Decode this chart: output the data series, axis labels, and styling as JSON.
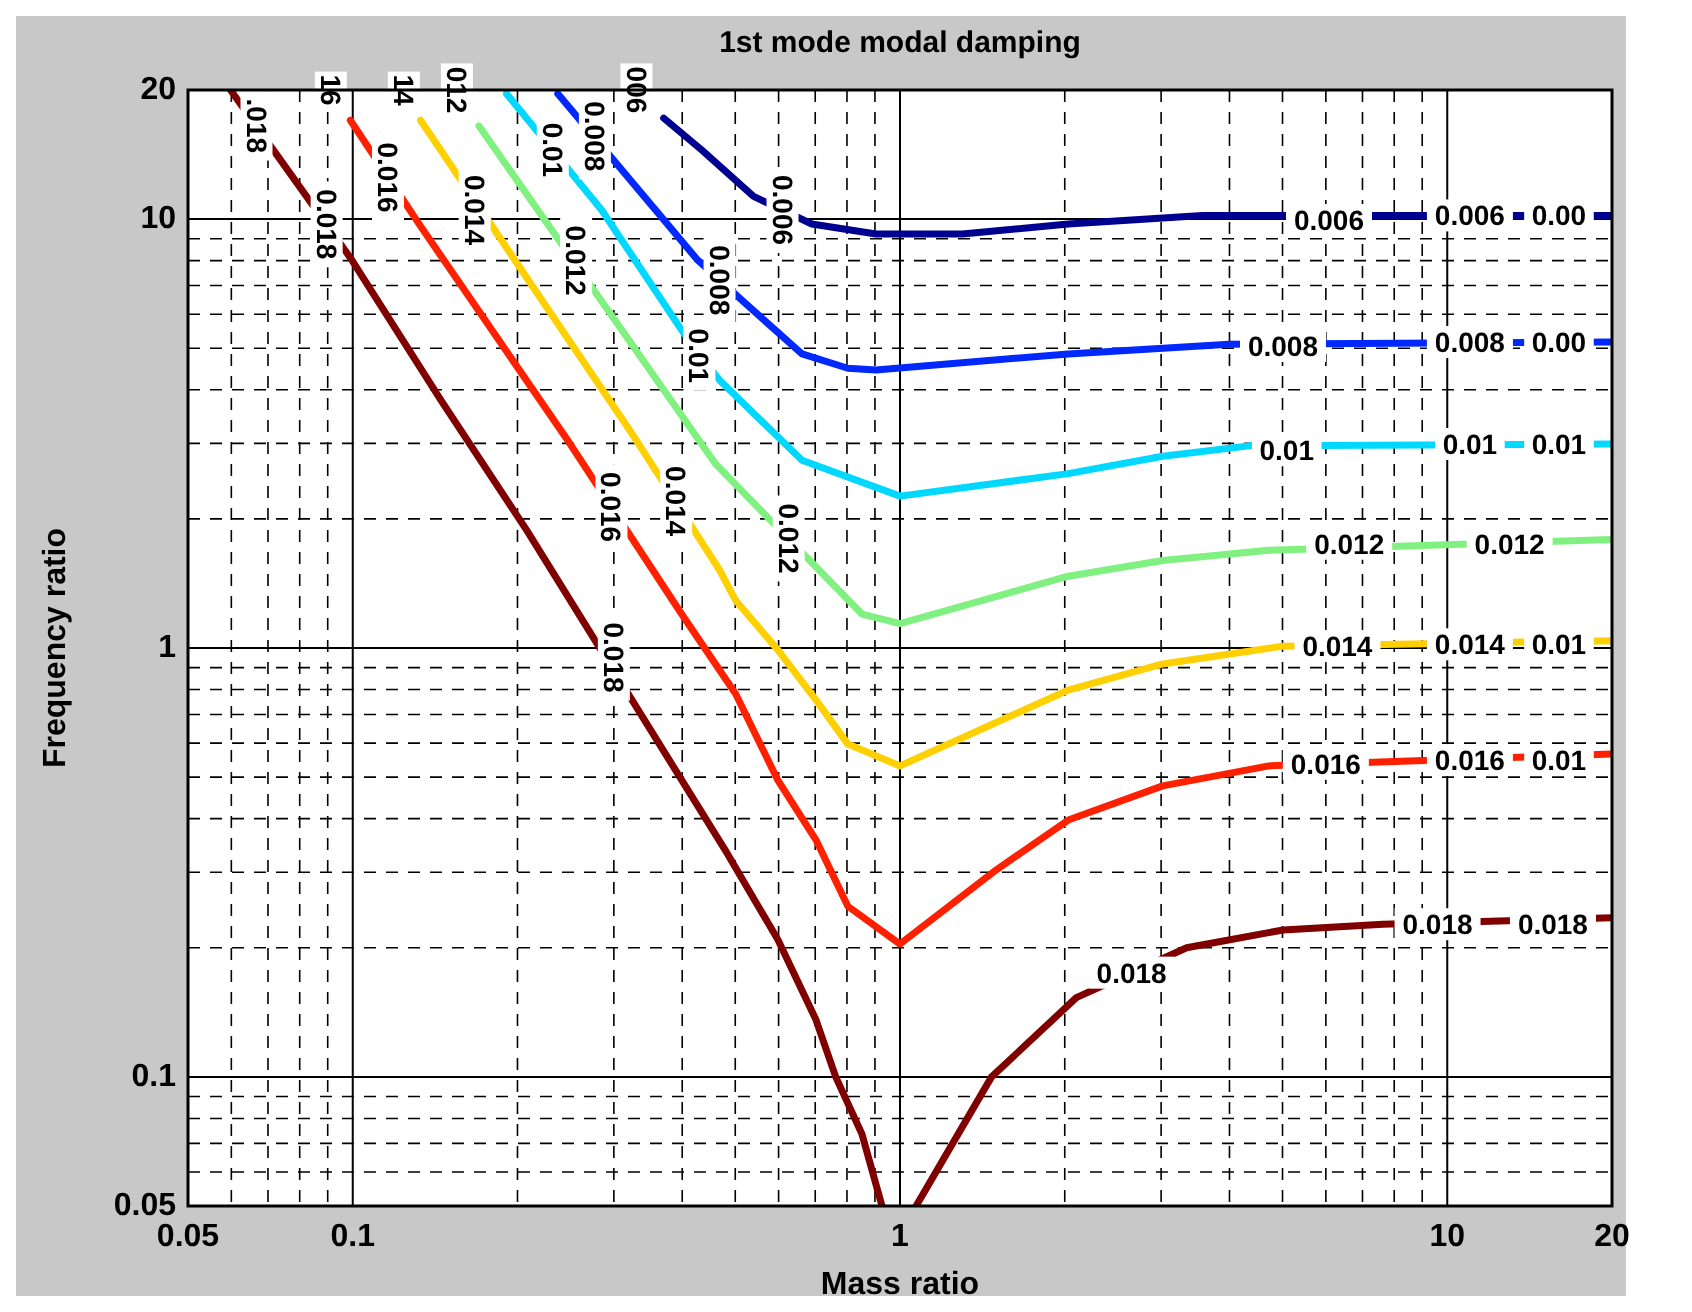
{
  "chart_data": {
    "type": "line",
    "title": "1st mode modal damping",
    "xlabel": "Mass ratio",
    "ylabel": "Frequency ratio",
    "log": "xy",
    "grid": true,
    "xlim": [
      0.05,
      20
    ],
    "ylim": [
      0.05,
      20
    ],
    "xticks": [
      0.05,
      0.1,
      1,
      10,
      20
    ],
    "yticks": [
      0.05,
      0.1,
      1,
      10,
      20
    ],
    "series": [
      {
        "color": "#000090",
        "x": [
          0.37,
          0.434,
          0.54,
          0.69,
          0.904,
          1.3,
          2.03,
          3.57,
          20
        ],
        "values": [
          17.2,
          14.5,
          11.3,
          9.74,
          9.23,
          9.23,
          9.74,
          10.2,
          10.2
        ]
      },
      {
        "color": "#0028ff",
        "x": [
          0.237,
          0.427,
          0.514,
          0.662,
          0.803,
          0.904,
          2.03,
          3.99,
          20
        ],
        "values": [
          19.6,
          8.02,
          6.47,
          4.85,
          4.49,
          4.45,
          4.85,
          5.11,
          5.17
        ]
      },
      {
        "color": "#00d8ff",
        "x": [
          0.191,
          0.285,
          0.399,
          0.468,
          0.662,
          1,
          2.03,
          3.02,
          4.34,
          20
        ],
        "values": [
          19.6,
          10.5,
          5.51,
          4.21,
          2.74,
          2.26,
          2.55,
          2.8,
          2.96,
          2.99
        ]
      },
      {
        "color": "#80f080",
        "x": [
          0.17,
          0.46,
          0.852,
          1,
          2.03,
          3.02,
          4.72,
          20
        ],
        "values": [
          16.5,
          2.69,
          1.2,
          1.14,
          1.47,
          1.6,
          1.69,
          1.79
        ]
      },
      {
        "color": "#ffd000",
        "x": [
          0.133,
          0.326,
          0.468,
          0.501,
          0.598,
          0.702,
          0.803,
          1,
          2.03,
          3.02,
          5.01,
          20
        ],
        "values": [
          17.0,
          3.12,
          1.52,
          1.29,
          0.99,
          0.757,
          0.597,
          0.531,
          0.798,
          0.918,
          1.01,
          1.04
        ]
      },
      {
        "color": "#ff2000",
        "x": [
          0.099,
          0.133,
          0.247,
          0.357,
          0.399,
          0.501,
          0.598,
          0.702,
          0.803,
          1,
          1.5,
          2.03,
          3.02,
          4.72,
          20
        ],
        "values": [
          17.0,
          9.63,
          3.05,
          1.49,
          1.2,
          0.781,
          0.492,
          0.357,
          0.25,
          0.204,
          0.304,
          0.397,
          0.477,
          0.531,
          0.566
        ]
      },
      {
        "color": "#800000",
        "x": [
          0.0598,
          0.0991,
          0.145,
          0.208,
          0.484,
          0.598,
          0.702,
          0.763,
          0.852,
          0.927,
          0.99,
          1.07,
          1.47,
          2.1,
          3.34,
          5.01,
          7.63,
          20
        ],
        "values": [
          20,
          8.11,
          3.78,
          1.88,
          0.331,
          0.209,
          0.136,
          0.1,
          0.0736,
          0.05,
          null,
          0.05,
          0.1,
          0.153,
          0.2,
          0.22,
          0.227,
          0.235
        ]
      }
    ],
    "annotations": [
      {
        "text": ".018",
        "x": 0.0667,
        "y": 16.5
      },
      {
        "text": "16",
        "x": 0.0912,
        "y": 20
      },
      {
        "text": "14",
        "x": 0.124,
        "y": 20
      },
      {
        "text": "0.016",
        "x": 0.116,
        "y": 12.5
      },
      {
        "text": "012",
        "x": 0.155,
        "y": 20
      },
      {
        "text": "0.014",
        "x": 0.167,
        "y": 10.5
      },
      {
        "text": "0.01",
        "x": 0.232,
        "y": 14.5
      },
      {
        "text": "0.012",
        "x": 0.256,
        "y": 8.0
      },
      {
        "text": "0.008",
        "x": 0.277,
        "y": 15.6
      },
      {
        "text": "006",
        "x": 0.33,
        "y": 20
      },
      {
        "text": "0.006",
        "x": 0.61,
        "y": 10.5
      },
      {
        "text": "0.018",
        "x": 0.0896,
        "y": 9.72
      },
      {
        "text": "0.008",
        "x": 0.468,
        "y": 7.2
      },
      {
        "text": "0.01",
        "x": 0.43,
        "y": 4.8
      },
      {
        "text": "0.016",
        "x": 0.297,
        "y": 2.13
      },
      {
        "text": "0.014",
        "x": 0.39,
        "y": 2.2
      },
      {
        "text": "0.012",
        "x": 0.626,
        "y": 1.8
      },
      {
        "text": "0.018",
        "x": 0.3,
        "y": 0.95
      },
      {
        "text": "0.006",
        "x": 6.08,
        "y": 9.95
      },
      {
        "text": "0.006",
        "x": 11,
        "y": 10.2
      },
      {
        "text": "0.00",
        "x": 16,
        "y": 10.2
      },
      {
        "text": "0.008",
        "x": 5.01,
        "y": 5.06
      },
      {
        "text": "0.008",
        "x": 11,
        "y": 5.17
      },
      {
        "text": "0.00",
        "x": 16,
        "y": 5.17
      },
      {
        "text": "0.01",
        "x": 5.09,
        "y": 2.89
      },
      {
        "text": "0.01",
        "x": 11,
        "y": 2.99
      },
      {
        "text": "0.01",
        "x": 16,
        "y": 2.99
      },
      {
        "text": "0.012",
        "x": 6.62,
        "y": 1.75
      },
      {
        "text": "0.012",
        "x": 13.0,
        "y": 1.75
      },
      {
        "text": "0.014",
        "x": 6.3,
        "y": 1.01
      },
      {
        "text": "0.014",
        "x": 11,
        "y": 1.02
      },
      {
        "text": "0.01",
        "x": 16,
        "y": 1.02
      },
      {
        "text": "0.016",
        "x": 6.0,
        "y": 0.537
      },
      {
        "text": "0.016",
        "x": 11,
        "y": 0.548
      },
      {
        "text": "0.01",
        "x": 16,
        "y": 0.548
      },
      {
        "text": "0.018",
        "x": 9.6,
        "y": 0.227
      },
      {
        "text": "0.018",
        "x": 15.6,
        "y": 0.227
      },
      {
        "text": "0.018",
        "x": 2.65,
        "y": 0.175
      }
    ]
  }
}
